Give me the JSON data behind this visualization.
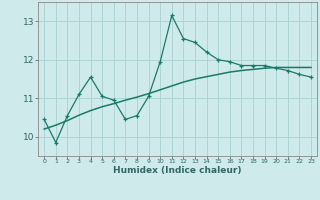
{
  "xlabel": "Humidex (Indice chaleur)",
  "bg_color": "#ceeaea",
  "line_color": "#1a7a6a",
  "line2_color": "#1a7a6a",
  "grid_color": "#afd4d4",
  "spine_color": "#888888",
  "tick_color": "#336666",
  "xlim": [
    -0.5,
    23.5
  ],
  "ylim": [
    9.5,
    13.5
  ],
  "yticks": [
    10,
    11,
    12,
    13
  ],
  "xtick_labels": [
    "0",
    "1",
    "2",
    "3",
    "4",
    "5",
    "6",
    "7",
    "8",
    "9",
    "10",
    "11",
    "12",
    "13",
    "14",
    "15",
    "16",
    "17",
    "18",
    "19",
    "20",
    "21",
    "22",
    "23"
  ],
  "line1_x": [
    0,
    1,
    2,
    3,
    4,
    5,
    6,
    7,
    8,
    9,
    10,
    11,
    12,
    13,
    14,
    15,
    16,
    17,
    18,
    19,
    20,
    21,
    22,
    23
  ],
  "line1_y": [
    10.45,
    9.85,
    10.55,
    11.1,
    11.55,
    11.05,
    10.95,
    10.45,
    10.55,
    11.05,
    11.95,
    13.15,
    12.55,
    12.45,
    12.2,
    12.0,
    11.95,
    11.85,
    11.85,
    11.85,
    11.78,
    11.72,
    11.62,
    11.55
  ],
  "line2_x": [
    0,
    1,
    2,
    3,
    4,
    5,
    6,
    7,
    8,
    9,
    10,
    11,
    12,
    13,
    14,
    15,
    16,
    17,
    18,
    19,
    20,
    21,
    22,
    23
  ],
  "line2_y": [
    10.2,
    10.3,
    10.42,
    10.56,
    10.68,
    10.78,
    10.86,
    10.95,
    11.03,
    11.12,
    11.22,
    11.32,
    11.42,
    11.5,
    11.56,
    11.62,
    11.68,
    11.72,
    11.75,
    11.78,
    11.8,
    11.8,
    11.8,
    11.8
  ]
}
